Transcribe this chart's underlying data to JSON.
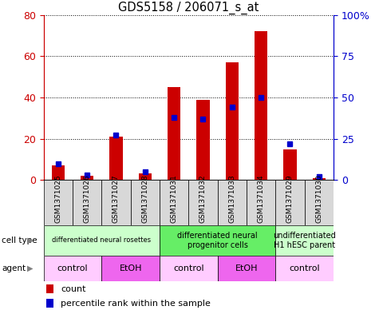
{
  "title": "GDS5158 / 206071_s_at",
  "samples": [
    "GSM1371025",
    "GSM1371026",
    "GSM1371027",
    "GSM1371028",
    "GSM1371031",
    "GSM1371032",
    "GSM1371033",
    "GSM1371034",
    "GSM1371029",
    "GSM1371030"
  ],
  "counts": [
    7,
    2,
    21,
    3,
    45,
    39,
    57,
    72,
    15,
    1
  ],
  "percentiles": [
    10,
    3,
    27,
    5,
    38,
    37,
    44,
    50,
    22,
    2
  ],
  "ylim_left": [
    0,
    80
  ],
  "ylim_right": [
    0,
    100
  ],
  "yticks_left": [
    0,
    20,
    40,
    60,
    80
  ],
  "ytick_labels_left": [
    "0",
    "20",
    "40",
    "60",
    "80"
  ],
  "ytick_labels_right": [
    "0",
    "25",
    "50",
    "75",
    "100%"
  ],
  "bar_color": "#cc0000",
  "percentile_color": "#0000cc",
  "cell_type_groups": [
    {
      "label": "differentiated neural rosettes",
      "start": 0,
      "end": 4,
      "color": "#ccffcc"
    },
    {
      "label": "differentiated neural\nprogenitor cells",
      "start": 4,
      "end": 8,
      "color": "#66ee66"
    },
    {
      "label": "undifferentiated\nH1 hESC parent",
      "start": 8,
      "end": 10,
      "color": "#ccffcc"
    }
  ],
  "agent_groups": [
    {
      "label": "control",
      "start": 0,
      "end": 2,
      "color": "#ffccff"
    },
    {
      "label": "EtOH",
      "start": 2,
      "end": 4,
      "color": "#ee66ee"
    },
    {
      "label": "control",
      "start": 4,
      "end": 6,
      "color": "#ffccff"
    },
    {
      "label": "EtOH",
      "start": 6,
      "end": 8,
      "color": "#ee66ee"
    },
    {
      "label": "control",
      "start": 8,
      "end": 10,
      "color": "#ffccff"
    }
  ],
  "legend_count_color": "#cc0000",
  "legend_percentile_color": "#0000cc",
  "tick_color_left": "#cc0000",
  "tick_color_right": "#0000cc",
  "background_color": "#ffffff"
}
